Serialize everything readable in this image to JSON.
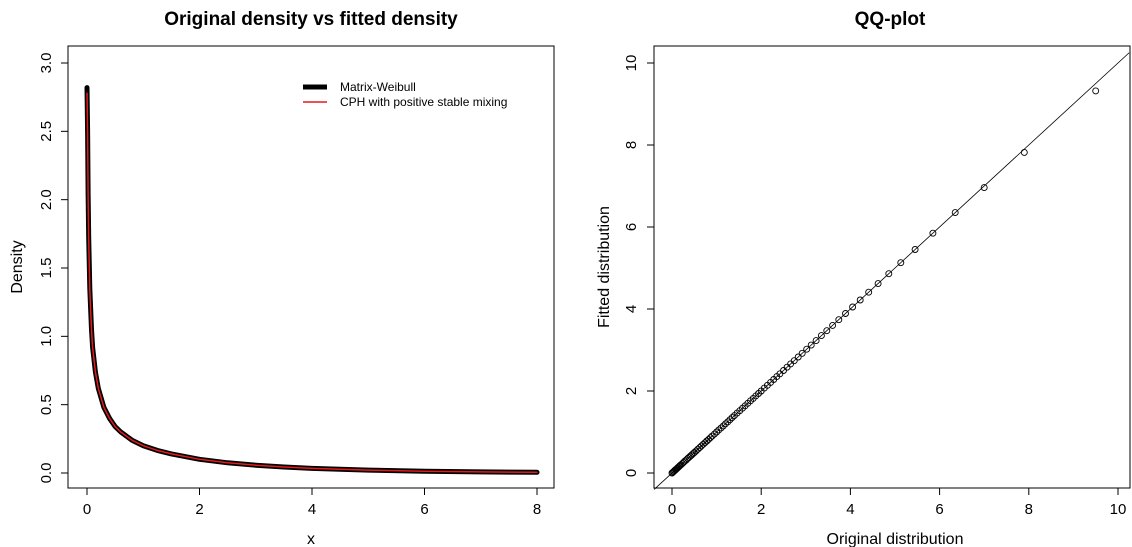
{
  "chart_data": [
    {
      "type": "line",
      "title": "Original density vs fitted density",
      "xlabel": "x",
      "ylabel": "Density",
      "xlim": [
        0,
        8
      ],
      "ylim": [
        0,
        3
      ],
      "x_ticks": [
        "0",
        "2",
        "4",
        "6",
        "8"
      ],
      "y_ticks": [
        "0.0",
        "0.5",
        "1.0",
        "1.5",
        "2.0",
        "2.5",
        "3.0"
      ],
      "legend": {
        "position": "top-right",
        "entries": [
          "Matrix-Weibull",
          "CPH with positive stable mixing"
        ]
      },
      "series": [
        {
          "name": "Matrix-Weibull",
          "color": "#000000",
          "x": [
            0.0,
            0.01,
            0.02,
            0.03,
            0.05,
            0.08,
            0.1,
            0.15,
            0.2,
            0.3,
            0.4,
            0.5,
            0.6,
            0.8,
            1.0,
            1.25,
            1.5,
            2.0,
            2.5,
            3.0,
            3.5,
            4.0,
            5.0,
            6.0,
            7.0,
            8.0
          ],
          "values": [
            2.82,
            2.5,
            2.05,
            1.72,
            1.35,
            1.05,
            0.92,
            0.74,
            0.62,
            0.48,
            0.4,
            0.34,
            0.3,
            0.24,
            0.2,
            0.165,
            0.14,
            0.1,
            0.075,
            0.057,
            0.044,
            0.034,
            0.021,
            0.013,
            0.008,
            0.005
          ]
        },
        {
          "name": "CPH with positive stable mixing",
          "color": "#e41a1c",
          "x": [
            0.0,
            0.01,
            0.02,
            0.03,
            0.05,
            0.08,
            0.1,
            0.15,
            0.2,
            0.3,
            0.4,
            0.5,
            0.6,
            0.8,
            1.0,
            1.25,
            1.5,
            2.0,
            2.5,
            3.0,
            3.5,
            4.0,
            5.0,
            6.0,
            7.0,
            8.0
          ],
          "values": [
            2.78,
            2.48,
            2.03,
            1.71,
            1.34,
            1.05,
            0.92,
            0.74,
            0.62,
            0.48,
            0.4,
            0.34,
            0.3,
            0.24,
            0.2,
            0.165,
            0.14,
            0.1,
            0.075,
            0.057,
            0.044,
            0.034,
            0.021,
            0.013,
            0.008,
            0.005
          ]
        }
      ]
    },
    {
      "type": "scatter",
      "title": "QQ-plot",
      "xlabel": "Original distribution",
      "ylabel": "Fitted distribution",
      "xlim": [
        0,
        10
      ],
      "ylim": [
        0,
        10
      ],
      "x_ticks": [
        "0",
        "2",
        "4",
        "6",
        "8",
        "10"
      ],
      "y_ticks": [
        "0",
        "2",
        "4",
        "6",
        "8",
        "10"
      ],
      "reference_line": "y = x",
      "series": [
        {
          "x": [
            0.0,
            0.02,
            0.04,
            0.06,
            0.08,
            0.1,
            0.12,
            0.14,
            0.16,
            0.18,
            0.2,
            0.23,
            0.26,
            0.29,
            0.32,
            0.35,
            0.38,
            0.41,
            0.44,
            0.47,
            0.5,
            0.54,
            0.58,
            0.62,
            0.66,
            0.7,
            0.74,
            0.78,
            0.82,
            0.86,
            0.9,
            0.95,
            1.0,
            1.05,
            1.1,
            1.15,
            1.2,
            1.25,
            1.3,
            1.35,
            1.4,
            1.46,
            1.52,
            1.58,
            1.64,
            1.7,
            1.76,
            1.82,
            1.88,
            1.94,
            2.0,
            2.07,
            2.14,
            2.21,
            2.28,
            2.35,
            2.42,
            2.5,
            2.58,
            2.66,
            2.74,
            2.83,
            2.92,
            3.02,
            3.12,
            3.23,
            3.35,
            3.47,
            3.6,
            3.74,
            3.89,
            4.05,
            4.22,
            4.41,
            4.62,
            4.86,
            5.13,
            5.45,
            5.85,
            6.35,
            7.0,
            7.9,
            9.5
          ],
          "values": [
            0.0,
            0.02,
            0.04,
            0.06,
            0.08,
            0.1,
            0.12,
            0.14,
            0.16,
            0.18,
            0.2,
            0.23,
            0.26,
            0.29,
            0.32,
            0.35,
            0.38,
            0.41,
            0.44,
            0.47,
            0.5,
            0.54,
            0.58,
            0.62,
            0.66,
            0.7,
            0.74,
            0.78,
            0.82,
            0.86,
            0.9,
            0.95,
            1.0,
            1.05,
            1.1,
            1.15,
            1.2,
            1.25,
            1.3,
            1.35,
            1.4,
            1.46,
            1.52,
            1.58,
            1.64,
            1.7,
            1.76,
            1.82,
            1.88,
            1.94,
            2.0,
            2.07,
            2.14,
            2.21,
            2.28,
            2.35,
            2.42,
            2.5,
            2.58,
            2.66,
            2.74,
            2.83,
            2.92,
            3.02,
            3.12,
            3.23,
            3.35,
            3.47,
            3.6,
            3.74,
            3.89,
            4.05,
            4.22,
            4.41,
            4.62,
            4.86,
            5.13,
            5.45,
            5.85,
            6.35,
            6.96,
            7.82,
            9.32
          ]
        }
      ]
    }
  ]
}
